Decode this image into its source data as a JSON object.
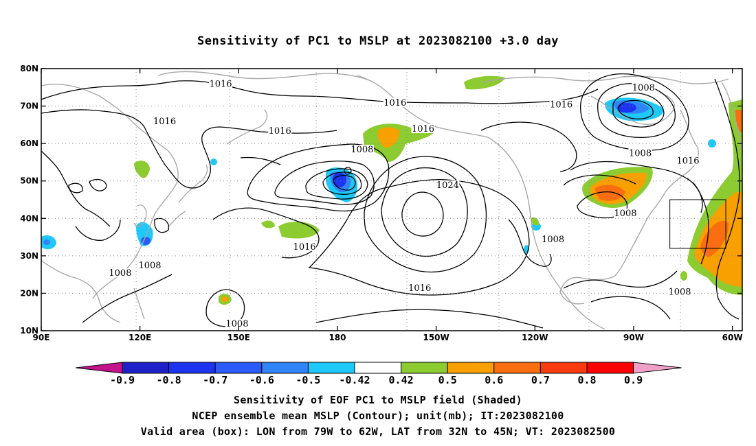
{
  "title": "Sensitivity of PC1 to MSLP at 2023082100 +3.0 day",
  "lat_labels": [
    "80N",
    "70N",
    "60N",
    "50N",
    "40N",
    "30N",
    "20N",
    "10N"
  ],
  "lon_labels": [
    "90E",
    "120E",
    "150E",
    "180",
    "150W",
    "120W",
    "90W",
    "60W"
  ],
  "contour_labels": [
    {
      "text": "1016",
      "lon": 144.5,
      "lat": 75.5
    },
    {
      "text": "1016",
      "lon": 127.5,
      "lat": 65.5
    },
    {
      "text": "1016",
      "lon": 162.5,
      "lat": 63.0
    },
    {
      "text": "1016",
      "lon": 197.5,
      "lat": 70.5
    },
    {
      "text": "1016",
      "lon": 248.0,
      "lat": 70.0
    },
    {
      "text": "1016",
      "lon": 206.0,
      "lat": 63.5
    },
    {
      "text": "1008",
      "lon": 187.5,
      "lat": 58.0
    },
    {
      "text": "1024",
      "lon": 213.5,
      "lat": 48.5
    },
    {
      "text": "1016",
      "lon": 170.0,
      "lat": 32.0
    },
    {
      "text": "1016",
      "lon": 205.0,
      "lat": 21.0
    },
    {
      "text": "1008",
      "lon": 123.0,
      "lat": 27.0
    },
    {
      "text": "1008",
      "lon": 114.0,
      "lat": 25.0
    },
    {
      "text": "1008",
      "lon": 149.5,
      "lat": 11.5
    },
    {
      "text": "1008",
      "lon": 273.0,
      "lat": 74.5
    },
    {
      "text": "1008",
      "lon": 272.0,
      "lat": 57.0
    },
    {
      "text": "1016",
      "lon": 286.5,
      "lat": 55.0
    },
    {
      "text": "1008",
      "lon": 267.5,
      "lat": 41.0
    },
    {
      "text": "1008",
      "lon": 245.5,
      "lat": 34.0
    },
    {
      "text": "1008",
      "lon": 284.0,
      "lat": 20.0
    }
  ],
  "colorbar": {
    "labels": [
      "-0.9",
      "-0.8",
      "-0.7",
      "-0.6",
      "-0.5",
      "-0.42",
      "0.42",
      "0.5",
      "0.6",
      "0.7",
      "0.8",
      "0.9"
    ],
    "colors": [
      "#2020c8",
      "#1c34f0",
      "#2a5af8",
      "#2f84f8",
      "#1ec8f8",
      "#ffffff",
      "#8ccc30",
      "#f8a000",
      "#f86e10",
      "#f83c10",
      "#ff0000"
    ],
    "low_color": "#c4128a",
    "high_color": "#f0a0c8"
  },
  "valid_box": {
    "lon_min": 281,
    "lon_max": 298,
    "lat_min": 32,
    "lat_max": 45
  },
  "captions": {
    "line1": "Sensitivity of EOF PC1 to MSLP field (Shaded)",
    "line2": "NCEP ensemble mean MSLP (Contour); unit(mb); IT:2023082100",
    "line3": "Valid area (box): LON from 79W to 62W, LAT from 32N to 45N; VT: 2023082500"
  }
}
